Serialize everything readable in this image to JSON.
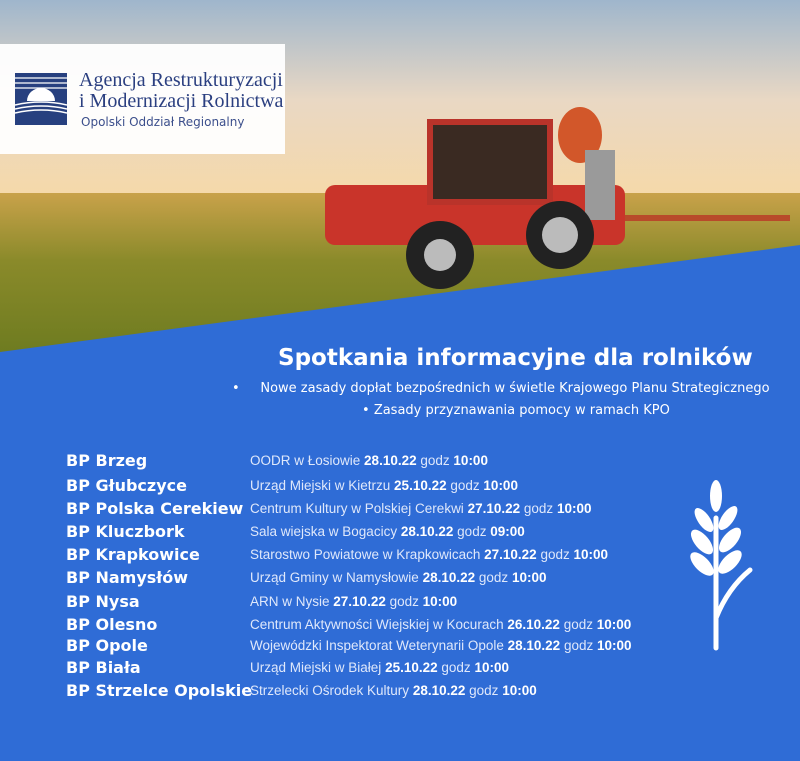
{
  "logo": {
    "line1": "Agencja Restrukturyzacji",
    "line2": "i Modernizacji Rolnictwa",
    "line3": "Opolski Oddział Regionalny",
    "mark": "ARiMR"
  },
  "title": "Spotkania informacyjne dla rolników",
  "bullets": [
    "Nowe zasady dopłat bezpośrednich w świetle  Krajowego Planu Strategicznego",
    "Zasady przyznawania pomocy w ramach KPO"
  ],
  "meetings": [
    {
      "office": "BP Brzeg",
      "venue": "OODR w Łosiowie",
      "date": "28.10.22",
      "godz": "godz",
      "time": "10:00"
    },
    {
      "office": "BP Głubczyce",
      "venue": "Urząd Miejski w Kietrzu",
      "date": "25.10.22",
      "godz": "godz",
      "time": "10:00"
    },
    {
      "office": "BP Polska Cerekiew",
      "venue": "Centrum Kultury w Polskiej Cerekwi",
      "date": "27.10.22",
      "godz": "godz",
      "time": "10:00"
    },
    {
      "office": "BP Kluczbork",
      "venue": "Sala wiejska w Bogacicy",
      "date": "28.10.22",
      "godz": "godz",
      "time": "09:00"
    },
    {
      "office": "BP Krapkowice",
      "venue": "Starostwo Powiatowe w Krapkowicach",
      "date": "27.10.22",
      "godz": "godz",
      "time": "10:00"
    },
    {
      "office": "BP Namysłów",
      "venue": "Urząd Gminy w Namysłowie",
      "date": "28.10.22",
      "godz": "godz",
      "time": "10:00"
    },
    {
      "office": "BP Nysa",
      "venue": "ARN w Nysie",
      "date": "27.10.22",
      "godz": "godz",
      "time": "10:00"
    },
    {
      "office": "BP Olesno",
      "venue": "Centrum Aktywności Wiejskiej w Kocurach",
      "date": "26.10.22",
      "godz": "godz",
      "time": "10:00"
    },
    {
      "office": "BP Opole",
      "venue": "Wojewódzki Inspektorat Weterynarii Opole",
      "date": "28.10.22",
      "godz": "godz",
      "time": "10:00"
    },
    {
      "office": "BP Biała",
      "venue": "Urząd Miejski w Białej",
      "date": "25.10.22",
      "godz": "godz",
      "time": "10:00"
    },
    {
      "office": "BP Strzelce Opolskie",
      "venue": "Strzelecki Ośrodek Kultury",
      "date": "28.10.22",
      "godz": "godz",
      "time": "10:00"
    }
  ],
  "colors": {
    "blue": "#2f6cd6",
    "logo_blue": "#2b3f80",
    "tractor_red": "#c9342a"
  },
  "icons": {
    "decor": "wheat-icon"
  }
}
